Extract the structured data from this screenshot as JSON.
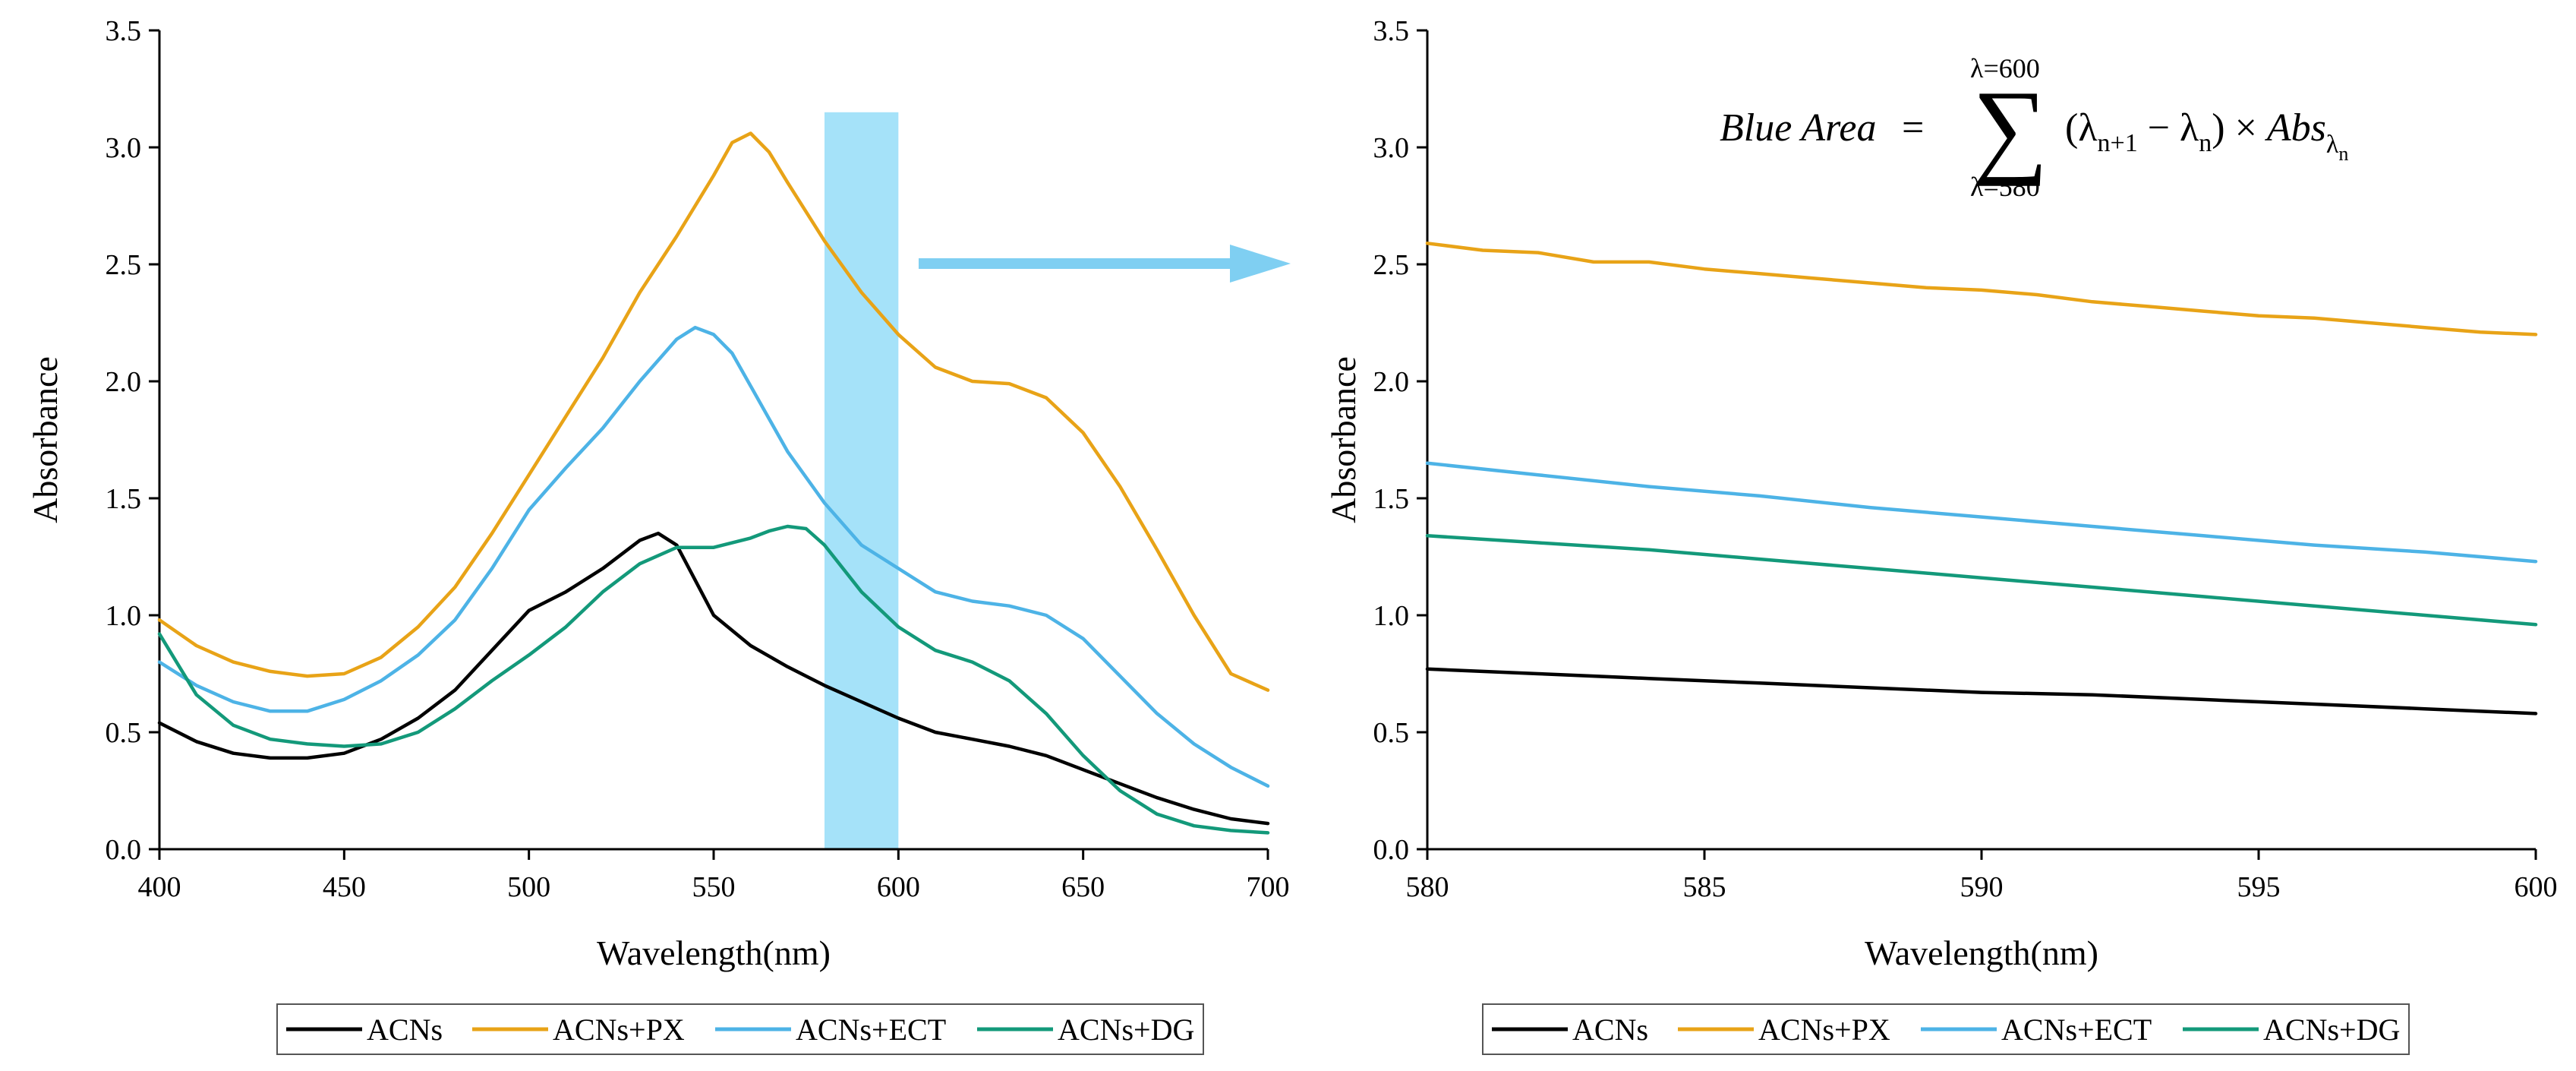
{
  "chart_data": [
    {
      "type": "line",
      "title": "",
      "xlabel": "Wavelength(nm)",
      "ylabel": "Absorbance",
      "xlim": [
        400,
        700
      ],
      "ylim": [
        0,
        3.5
      ],
      "x_ticks": [
        "400",
        "450",
        "500",
        "550",
        "600",
        "650",
        "700"
      ],
      "y_ticks": [
        "0.0",
        "0.5",
        "1.0",
        "1.5",
        "2.0",
        "2.5",
        "3.0",
        "3.5"
      ],
      "highlight_region": {
        "x_from": 580,
        "x_to": 600,
        "y_to": 3.15,
        "color": "#7fd6f7"
      },
      "series": [
        {
          "name": "ACNs",
          "color": "#000000",
          "x": [
            400,
            410,
            420,
            430,
            440,
            450,
            460,
            470,
            480,
            490,
            500,
            510,
            520,
            530,
            535,
            540,
            545,
            550,
            560,
            570,
            580,
            590,
            600,
            610,
            620,
            630,
            640,
            650,
            660,
            670,
            680,
            690,
            700
          ],
          "y": [
            0.54,
            0.46,
            0.41,
            0.39,
            0.39,
            0.41,
            0.47,
            0.56,
            0.68,
            0.85,
            1.02,
            1.1,
            1.2,
            1.32,
            1.35,
            1.3,
            1.15,
            1.0,
            0.87,
            0.78,
            0.7,
            0.63,
            0.56,
            0.5,
            0.47,
            0.44,
            0.4,
            0.34,
            0.28,
            0.22,
            0.17,
            0.13,
            0.11
          ]
        },
        {
          "name": "ACNs+PX",
          "color": "#e8a317",
          "x": [
            400,
            410,
            420,
            430,
            440,
            450,
            460,
            470,
            480,
            490,
            500,
            510,
            520,
            530,
            540,
            550,
            555,
            560,
            565,
            570,
            580,
            590,
            600,
            610,
            620,
            630,
            640,
            650,
            660,
            670,
            680,
            690,
            700
          ],
          "y": [
            0.98,
            0.87,
            0.8,
            0.76,
            0.74,
            0.75,
            0.82,
            0.95,
            1.12,
            1.35,
            1.6,
            1.85,
            2.1,
            2.38,
            2.62,
            2.88,
            3.02,
            3.06,
            2.98,
            2.85,
            2.6,
            2.38,
            2.2,
            2.06,
            2.0,
            1.99,
            1.93,
            1.78,
            1.55,
            1.28,
            1.0,
            0.75,
            0.68
          ]
        },
        {
          "name": "ACNs+ECT",
          "color": "#4db3e6",
          "x": [
            400,
            410,
            420,
            430,
            440,
            450,
            460,
            470,
            480,
            490,
            500,
            510,
            520,
            530,
            540,
            545,
            550,
            555,
            560,
            570,
            580,
            590,
            600,
            610,
            620,
            630,
            640,
            650,
            660,
            670,
            680,
            690,
            700
          ],
          "y": [
            0.8,
            0.7,
            0.63,
            0.59,
            0.59,
            0.64,
            0.72,
            0.83,
            0.98,
            1.2,
            1.45,
            1.63,
            1.8,
            2.0,
            2.18,
            2.23,
            2.2,
            2.12,
            1.98,
            1.7,
            1.48,
            1.3,
            1.2,
            1.1,
            1.06,
            1.04,
            1.0,
            0.9,
            0.74,
            0.58,
            0.45,
            0.35,
            0.27
          ]
        },
        {
          "name": "ACNs+DG",
          "color": "#13997a",
          "x": [
            400,
            410,
            420,
            430,
            440,
            450,
            460,
            470,
            480,
            490,
            500,
            510,
            520,
            530,
            540,
            550,
            560,
            565,
            570,
            575,
            580,
            590,
            600,
            610,
            620,
            630,
            640,
            650,
            660,
            670,
            680,
            690,
            700
          ],
          "y": [
            0.92,
            0.66,
            0.53,
            0.47,
            0.45,
            0.44,
            0.45,
            0.5,
            0.6,
            0.72,
            0.83,
            0.95,
            1.1,
            1.22,
            1.29,
            1.29,
            1.33,
            1.36,
            1.38,
            1.37,
            1.3,
            1.1,
            0.95,
            0.85,
            0.8,
            0.72,
            0.58,
            0.4,
            0.25,
            0.15,
            0.1,
            0.08,
            0.07
          ]
        }
      ]
    },
    {
      "type": "line",
      "title": "",
      "xlabel": "Wavelength(nm)",
      "ylabel": "Absorbance",
      "xlim": [
        580,
        600
      ],
      "ylim": [
        0,
        3.5
      ],
      "x_ticks": [
        "580",
        "585",
        "590",
        "595",
        "600"
      ],
      "y_ticks": [
        "0.0",
        "0.5",
        "1.0",
        "1.5",
        "2.0",
        "2.5",
        "3.0",
        "3.5"
      ],
      "series": [
        {
          "name": "ACNs",
          "color": "#000000",
          "x": [
            580,
            582,
            584,
            586,
            588,
            590,
            592,
            594,
            596,
            598,
            600
          ],
          "y": [
            0.77,
            0.75,
            0.73,
            0.71,
            0.69,
            0.67,
            0.66,
            0.64,
            0.62,
            0.6,
            0.58
          ]
        },
        {
          "name": "ACNs+PX",
          "color": "#e8a317",
          "x": [
            580,
            581,
            582,
            583,
            584,
            585,
            586,
            587,
            588,
            589,
            590,
            591,
            592,
            593,
            594,
            595,
            596,
            597,
            598,
            599,
            600
          ],
          "y": [
            2.59,
            2.56,
            2.55,
            2.51,
            2.51,
            2.48,
            2.46,
            2.44,
            2.42,
            2.4,
            2.39,
            2.37,
            2.34,
            2.32,
            2.3,
            2.28,
            2.27,
            2.25,
            2.23,
            2.21,
            2.2
          ]
        },
        {
          "name": "ACNs+ECT",
          "color": "#4db3e6",
          "x": [
            580,
            582,
            584,
            586,
            588,
            590,
            592,
            594,
            596,
            598,
            600
          ],
          "y": [
            1.65,
            1.6,
            1.55,
            1.51,
            1.46,
            1.42,
            1.38,
            1.34,
            1.3,
            1.27,
            1.23
          ]
        },
        {
          "name": "ACNs+DG",
          "color": "#13997a",
          "x": [
            580,
            582,
            584,
            586,
            588,
            590,
            592,
            594,
            596,
            598,
            600
          ],
          "y": [
            1.34,
            1.31,
            1.28,
            1.24,
            1.2,
            1.16,
            1.12,
            1.08,
            1.04,
            1.0,
            0.96
          ]
        }
      ]
    }
  ],
  "formula": {
    "lhs": "Blue Area",
    "equals": "=",
    "sum_upper": "λ=600",
    "sum_lower": "λ=580",
    "sigma": "∑",
    "body": "(λ",
    "sub1": "n+1",
    "minus": " − λ",
    "sub2": "n",
    "times": ") × ",
    "abs": "Abs",
    "abs_sub": "λ",
    "abs_subsub": "n"
  }
}
